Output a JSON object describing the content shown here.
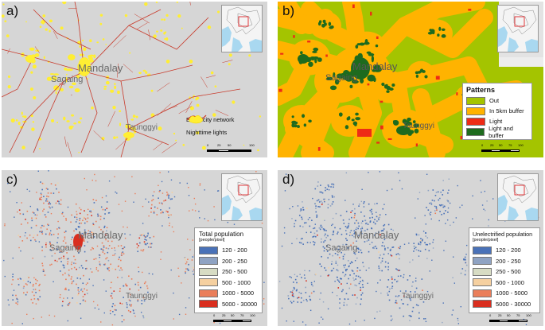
{
  "panels": {
    "a": {
      "label": "a)",
      "cities": {
        "mandalay": "Mandalay",
        "sagaing": "Sagaing",
        "taunggyi": "Taunggyi"
      },
      "legend": {
        "network": "Electricity network",
        "lights": "Nighttime lights"
      },
      "scale": {
        "l0": "0",
        "l1": "25",
        "l2": "50",
        "l3": "100",
        "unit": "km"
      }
    },
    "b": {
      "label": "b)",
      "cities": {
        "mandalay": "Mandalay",
        "sagaing": "Sagaing",
        "taunggyi": "Taunggyi"
      },
      "legend": {
        "title": "Patterns",
        "items": [
          "Out",
          "In 5km buffer",
          "Light",
          "Light and buffer"
        ],
        "colors": [
          "#a4c400",
          "#ffb300",
          "#ee2b16",
          "#1e6b1e"
        ]
      },
      "scale": {
        "l0": "0",
        "l1": "25",
        "l2": "50",
        "l3": "75",
        "l4": "100",
        "unit": "km"
      }
    },
    "c": {
      "label": "c)",
      "cities": {
        "mandalay": "Mandalay",
        "sagaing": "Sagaing",
        "taunggyi": "Taunggyi"
      },
      "legend": {
        "title": "Total population",
        "subtitle": "[people/pixel]",
        "items": [
          "120 - 200",
          "200 - 250",
          "250 - 500",
          "500 - 1000",
          "1000 - 5000",
          "5000 - 30000"
        ]
      },
      "scale": {
        "l0": "0",
        "l1": "25",
        "l2": "50",
        "l3": "75",
        "l4": "100",
        "unit": "km"
      }
    },
    "d": {
      "label": "d)",
      "cities": {
        "mandalay": "Mandalay",
        "sagaing": "Sagaing",
        "taunggyi": "Taunggyi"
      },
      "legend": {
        "title": "Unelectrified population",
        "subtitle": "[people/pixel]",
        "items": [
          "120 - 200",
          "200 - 250",
          "250 - 500",
          "500 - 1000",
          "1000 - 5000",
          "5000 - 30000"
        ]
      },
      "scale": {
        "l0": "0",
        "l1": "25",
        "l2": "50",
        "l3": "75",
        "l4": "100",
        "unit": "km"
      }
    }
  },
  "colors": {
    "map_bg": "#d6d6d6",
    "network": "#c83b2c",
    "lights": "#ffee33",
    "pop": [
      "#4a72b8",
      "#8fa3c3",
      "#d7dcc4",
      "#f5d0a0",
      "#ea7e5a",
      "#d92e1f"
    ],
    "inset_sea": "#a9d8f0"
  }
}
